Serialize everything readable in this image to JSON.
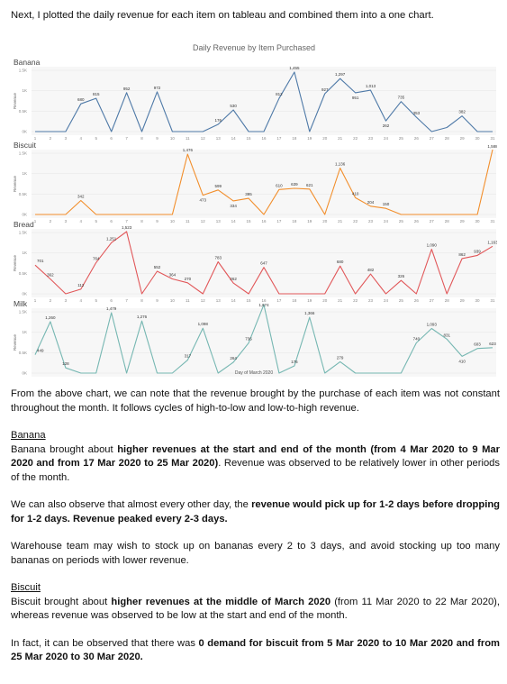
{
  "intro": "Next, I plotted the daily revenue for each item on tableau and combined them into a one chart.",
  "chart_data": {
    "type": "line",
    "title": "Daily Revenue by Item Purchased",
    "xlabel": "Day of March 2020",
    "ylabel": "Revenue",
    "x": [
      1,
      2,
      3,
      4,
      5,
      6,
      7,
      8,
      9,
      10,
      11,
      12,
      13,
      14,
      15,
      16,
      17,
      18,
      19,
      20,
      21,
      22,
      23,
      24,
      25,
      26,
      27,
      28,
      29,
      30,
      31
    ],
    "yticks": [
      "1.5K",
      "1K",
      "0.5K",
      "0K"
    ],
    "ylim": [
      0,
      1500
    ],
    "series": [
      {
        "name": "Banana",
        "color": "#4e79a7",
        "values": [
          0,
          0,
          0,
          680,
          815,
          0,
          952,
          0,
          972,
          0,
          0,
          0,
          176,
          530,
          0,
          0,
          812,
          1455,
          0,
          927,
          1297,
          951,
          1013,
          262,
          735,
          353,
          0,
          100,
          382,
          0,
          0
        ],
        "labels": {
          "4": "680",
          "5": "815",
          "7": "952",
          "9": "972",
          "13": "176",
          "14": "530",
          "17": "812",
          "18": "1,455",
          "20": "927",
          "21": "1,297",
          "22": "951",
          "23": "1,013",
          "24": "262",
          "25": "735",
          "26": "353",
          "29": "382"
        }
      },
      {
        "name": "Biscuit",
        "color": "#f28e2b",
        "values": [
          0,
          0,
          0,
          342,
          0,
          0,
          0,
          0,
          0,
          0,
          1476,
          473,
          599,
          334,
          395,
          0,
          610,
          639,
          621,
          0,
          1136,
          410,
          204,
          150,
          0,
          0,
          0,
          0,
          0,
          0,
          1588
        ],
        "labels": {
          "4": "342",
          "11": "1,476",
          "12": "473",
          "13": "599",
          "14": "334",
          "15": "395",
          "17": "610",
          "18": "639",
          "19": "621",
          "21": "1,136",
          "22": "410",
          "23": "204",
          "24": "150",
          "31": "1,588"
        }
      },
      {
        "name": "Bread",
        "color": "#e15759",
        "values": [
          701,
          362,
          0,
          112,
          764,
          1251,
          1523,
          0,
          552,
          364,
          270,
          0,
          783,
          262,
          0,
          647,
          0,
          0,
          0,
          0,
          680,
          0,
          482,
          0,
          326,
          0,
          1090,
          0,
          862,
          939,
          1163
        ],
        "labels": {
          "1": "701",
          "2": "362",
          "4": "112",
          "5": "764",
          "6": "1,251",
          "7": "1,523",
          "9": "552",
          "10": "364",
          "11": "270",
          "13": "783",
          "14": "262",
          "16": "647",
          "21": "680",
          "23": "482",
          "25": "326",
          "27": "1,090",
          "29": "862",
          "30": "939",
          "31": "1,163"
        }
      },
      {
        "name": "Milk",
        "color": "#76b7b2",
        "values": [
          449,
          1260,
          128,
          0,
          0,
          1479,
          0,
          1276,
          0,
          0,
          317,
          1098,
          0,
          264,
          736,
          1674,
          0,
          176,
          1366,
          0,
          279,
          0,
          0,
          0,
          0,
          740,
          1093,
          831,
          410,
          603,
          623
        ],
        "labels": {
          "1": "449",
          "2": "1,260",
          "3": "128",
          "6": "1,479",
          "8": "1,276",
          "11": "317",
          "12": "1,098",
          "14": "264",
          "15": "736",
          "16": "1,674",
          "18": "176",
          "19": "1,366",
          "21": "279",
          "26": "740",
          "27": "1,093",
          "28": "831",
          "29": "410",
          "30": "603",
          "31": "623"
        }
      }
    ]
  },
  "paragraphs": {
    "p1": "From the above chart, we can note that the revenue brought by the purchase of each item was not constant throughout the month. It follows cycles of high-to-low and low-to-high revenue.",
    "banana_heading": "Banana",
    "banana_1_pre": "Banana brought about ",
    "banana_1_bold": "higher revenues at the start and end of the month (from 4 Mar 2020 to 9 Mar 2020 and from 17 Mar 2020 to 25 Mar 2020)",
    "banana_1_post": ". Revenue was observed to be relatively lower in other periods of the month.",
    "banana_2_pre": "We can also observe that almost every other day, the ",
    "banana_2_bold": "revenue would pick up for 1-2 days before dropping for 1-2 days. Revenue peaked every 2-3 days.",
    "banana_3": "Warehouse team may wish to stock up on bananas every 2 to 3 days, and avoid stocking up too many bananas on periods with lower revenue.",
    "biscuit_heading": "Biscuit",
    "biscuit_1_pre": "Biscuit brought about ",
    "biscuit_1_bold": "higher revenues at the middle of March 2020",
    "biscuit_1_post": " (from 11 Mar 2020 to 22 Mar 2020), whereas revenue was observed to be low at the start and end of the month.",
    "biscuit_2_pre": "In fact, it can be observed that there was ",
    "biscuit_2_bold": "0 demand for biscuit from 5 Mar 2020 to 10 Mar 2020 and from 25 Mar 2020 to 30 Mar 2020."
  }
}
